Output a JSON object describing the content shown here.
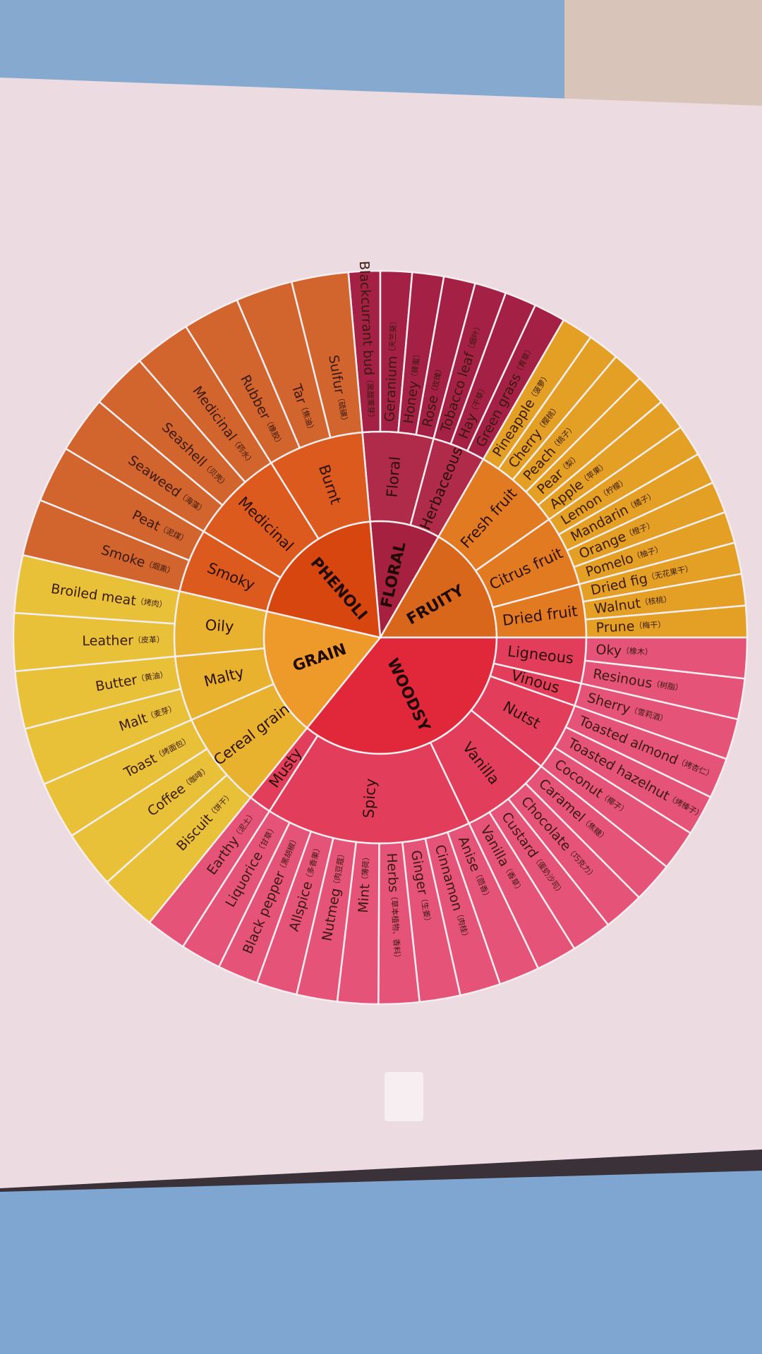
{
  "wheel": {
    "categories": [
      {
        "name": "FLORAL",
        "groups": [
          {
            "name": "Floral",
            "items": [
              {
                "name": "Blackcurrant bud",
                "note": "（黑醋栗芽）"
              },
              {
                "name": "Geranium",
                "note": "（天竺葵）"
              },
              {
                "name": "Honey",
                "note": "（蜂蜜）"
              },
              {
                "name": "Rose",
                "note": "（玫瑰）"
              }
            ]
          },
          {
            "name": "Herbaceous",
            "items": [
              {
                "name": "Tobacco leaf",
                "note": "（烟叶）"
              },
              {
                "name": "Hay",
                "note": "（干草）"
              },
              {
                "name": "Green grass",
                "note": "（青草）"
              }
            ]
          }
        ]
      },
      {
        "name": "FRUITY",
        "groups": [
          {
            "name": "Fresh fruit",
            "items": [
              {
                "name": "Pineapple",
                "note": "（菠萝）"
              },
              {
                "name": "Cherry",
                "note": "（樱桃）"
              },
              {
                "name": "Peach",
                "note": "（桃子）"
              },
              {
                "name": "Pear",
                "note": "（梨）"
              },
              {
                "name": "Apple",
                "note": "（苹果）"
              }
            ]
          },
          {
            "name": "Citrus fruit",
            "items": [
              {
                "name": "Lemon",
                "note": "（柠檬）"
              },
              {
                "name": "Mandarin",
                "note": "（橘子）"
              },
              {
                "name": "Orange",
                "note": "（橙子）"
              },
              {
                "name": "Pomelo",
                "note": "（柚子）"
              }
            ]
          },
          {
            "name": "Dried fruit",
            "items": [
              {
                "name": "Dried fig",
                "note": "（无花果干）"
              },
              {
                "name": "Walnut",
                "note": "（核桃）"
              },
              {
                "name": "Prune",
                "note": "（梅干）"
              }
            ]
          }
        ]
      },
      {
        "name": "WOODSY",
        "groups": [
          {
            "name": "Ligneous",
            "items": [
              {
                "name": "Oky",
                "note": "（橡木）"
              },
              {
                "name": "Resinous",
                "note": "（树脂）"
              }
            ]
          },
          {
            "name": "Vinous",
            "items": [
              {
                "name": "Sherry",
                "note": "（雪莉酒）"
              }
            ]
          },
          {
            "name": "Nutst",
            "items": [
              {
                "name": "Toasted almond",
                "note": "（烤杏仁）"
              },
              {
                "name": "Toasted hazelnut",
                "note": "（烤榛子）"
              },
              {
                "name": "Coconut",
                "note": "（椰子）"
              }
            ]
          },
          {
            "name": "Vanilla",
            "items": [
              {
                "name": "Caramel",
                "note": "（焦糖）"
              },
              {
                "name": "Chocolate",
                "note": "（巧克力）"
              },
              {
                "name": "Custard",
                "note": "（蛋奶沙司）"
              },
              {
                "name": "Vanilla",
                "note": "（香草）"
              }
            ]
          },
          {
            "name": "Spicy",
            "items": [
              {
                "name": "Anise",
                "note": "（茴香）"
              },
              {
                "name": "Cinnamon",
                "note": "（肉桂）"
              },
              {
                "name": "Ginger",
                "note": "（生姜）"
              },
              {
                "name": "Herbs",
                "note": "（草本植物、香料）"
              },
              {
                "name": "Mint",
                "note": "（薄荷）"
              },
              {
                "name": "Nutmeg",
                "note": "（肉豆蔻）"
              },
              {
                "name": "Allspice",
                "note": "（多香果）"
              },
              {
                "name": "Black pepper",
                "note": "（黑胡椒）"
              },
              {
                "name": "Liquorice",
                "note": "（甘草）"
              }
            ]
          },
          {
            "name": "Musty",
            "items": [
              {
                "name": "Earthy",
                "note": "（泥土）"
              }
            ]
          }
        ]
      },
      {
        "name": "GRAIN",
        "groups": [
          {
            "name": "Cereal grain",
            "items": [
              {
                "name": "Biscuit",
                "note": "（饼干）"
              },
              {
                "name": "Coffee",
                "note": "（咖啡）"
              },
              {
                "name": "Toast",
                "note": "（烤面包）"
              }
            ]
          },
          {
            "name": "Malty",
            "items": [
              {
                "name": "Malt",
                "note": "（麦芽）"
              },
              {
                "name": "Butter",
                "note": "（黄油）"
              }
            ]
          },
          {
            "name": "Oily",
            "items": [
              {
                "name": "Leather",
                "note": "（皮革）"
              },
              {
                "name": "Broiled meat",
                "note": "（烤肉）"
              }
            ]
          }
        ]
      },
      {
        "name": "PHENOLI",
        "groups": [
          {
            "name": "Smoky",
            "items": [
              {
                "name": "Smoke",
                "note": "（烟熏）"
              },
              {
                "name": "Peat",
                "note": "（泥煤）"
              }
            ]
          },
          {
            "name": "Medicinal",
            "items": [
              {
                "name": "Seaweed",
                "note": "（海藻）"
              },
              {
                "name": "Seashell",
                "note": "（贝壳）"
              },
              {
                "name": "Medicinal",
                "note": "（药水）"
              }
            ]
          },
          {
            "name": "Burnt",
            "items": [
              {
                "name": "Rubber",
                "note": "（橡胶）"
              },
              {
                "name": "Tar",
                "note": "（焦油）"
              },
              {
                "name": "Sulfur",
                "note": "（硫磺）"
              }
            ]
          }
        ]
      }
    ]
  }
}
